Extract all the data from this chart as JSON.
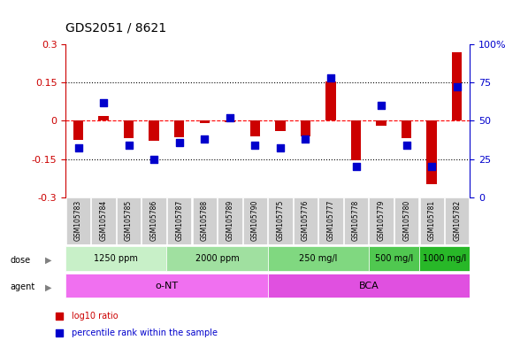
{
  "title": "GDS2051 / 8621",
  "samples": [
    "GSM105783",
    "GSM105784",
    "GSM105785",
    "GSM105786",
    "GSM105787",
    "GSM105788",
    "GSM105789",
    "GSM105790",
    "GSM105775",
    "GSM105776",
    "GSM105777",
    "GSM105778",
    "GSM105779",
    "GSM105780",
    "GSM105781",
    "GSM105782"
  ],
  "log10_ratio": [
    -0.075,
    0.02,
    -0.07,
    -0.08,
    -0.065,
    -0.01,
    -0.005,
    -0.06,
    -0.04,
    -0.06,
    0.155,
    -0.155,
    -0.02,
    -0.07,
    -0.25,
    0.27
  ],
  "percentile_rank": [
    32,
    62,
    34,
    25,
    36,
    38,
    52,
    34,
    32,
    38,
    78,
    20,
    60,
    34,
    20,
    72
  ],
  "ylim_left": [
    -0.3,
    0.3
  ],
  "ylim_right": [
    0,
    100
  ],
  "yticks_left": [
    -0.3,
    -0.15,
    0.0,
    0.15,
    0.3
  ],
  "ytick_labels_left": [
    "-0.3",
    "-0.15",
    "0",
    "0.15",
    "0.3"
  ],
  "yticks_right": [
    0,
    25,
    50,
    75,
    100
  ],
  "ytick_labels_right": [
    "0",
    "25",
    "50",
    "75",
    "100%"
  ],
  "hlines_dotted": [
    0.15,
    -0.15
  ],
  "hline_dashed": 0.0,
  "dose_groups": [
    {
      "label": "1250 ppm",
      "start": 0,
      "end": 4,
      "color": "#c8f0c8"
    },
    {
      "label": "2000 ppm",
      "start": 4,
      "end": 8,
      "color": "#a0e0a0"
    },
    {
      "label": "250 mg/l",
      "start": 8,
      "end": 12,
      "color": "#80d880"
    },
    {
      "label": "500 mg/l",
      "start": 12,
      "end": 14,
      "color": "#50c850"
    },
    {
      "label": "1000 mg/l",
      "start": 14,
      "end": 16,
      "color": "#28b828"
    }
  ],
  "agent_groups": [
    {
      "label": "o-NT",
      "start": 0,
      "end": 8,
      "color": "#f070f0"
    },
    {
      "label": "BCA",
      "start": 8,
      "end": 16,
      "color": "#e050e0"
    }
  ],
  "bar_color": "#cc0000",
  "dot_color": "#0000cc",
  "bar_width": 0.4,
  "dot_size": 40,
  "legend_items": [
    {
      "color": "#cc0000",
      "label": "log10 ratio"
    },
    {
      "color": "#0000cc",
      "label": "percentile rank within the sample"
    }
  ],
  "sample_label_bg": "#d0d0d0"
}
